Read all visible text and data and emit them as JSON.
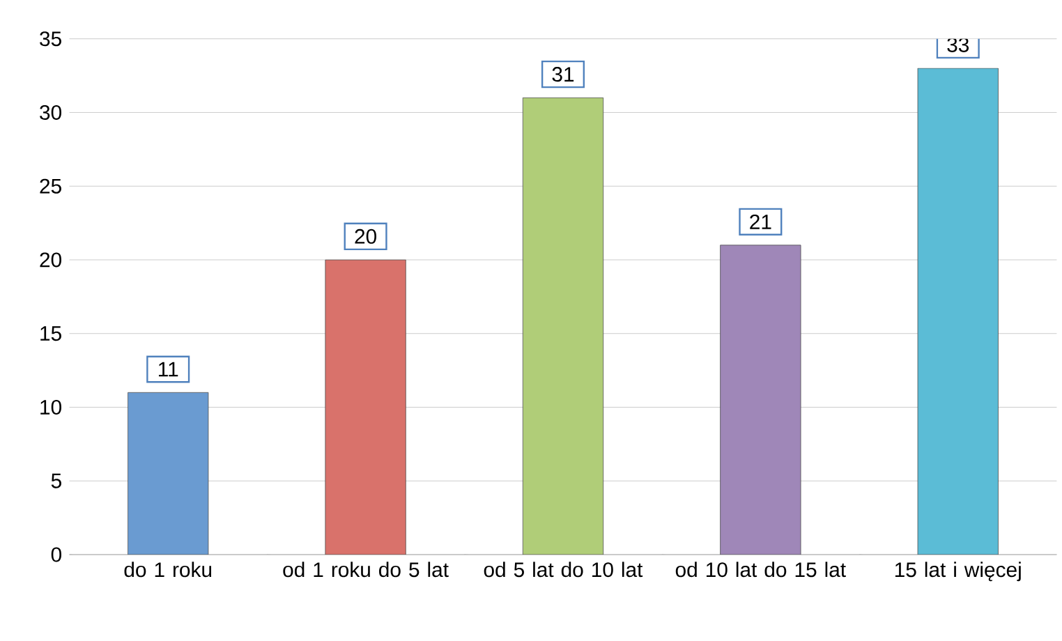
{
  "chart_data": {
    "type": "bar",
    "categories": [
      "do 1 roku",
      "od 1 roku do 5 lat",
      "od 5 lat do 10 lat",
      "od 10 lat do 15 lat",
      "15 lat i więcej"
    ],
    "values": [
      11,
      20,
      31,
      21,
      33
    ],
    "colors": [
      "#6a9bd1",
      "#d9726b",
      "#b0cd78",
      "#9f87b8",
      "#5bbcd6"
    ],
    "ylim": [
      0,
      35
    ],
    "yticks": [
      0,
      5,
      10,
      15,
      20,
      25,
      30,
      35
    ],
    "grid": "y",
    "data_labels": true
  }
}
